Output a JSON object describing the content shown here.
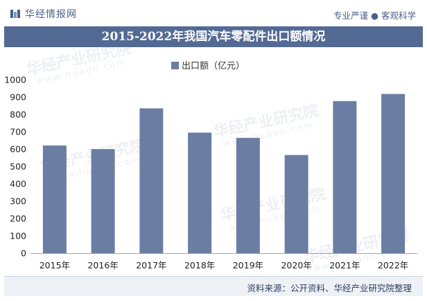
{
  "header": {
    "brand": "华经情报网",
    "tagline": "专业严谨 ● 客观科学"
  },
  "title": "2015-2022年我国汽车零配件出口额情况",
  "watermark": {
    "main": "华经产业研究院",
    "sub": "www.huaon.com"
  },
  "footer": {
    "source": "资料来源：公开资料、华经产业研究院整理"
  },
  "colors": {
    "bar": "#6b7da3",
    "title_bg": "#536a94",
    "brand": "#4b5f8a"
  },
  "chart_data": {
    "type": "bar",
    "categories": [
      "2015年",
      "2016年",
      "2017年",
      "2018年",
      "2019年",
      "2020年",
      "2021年",
      "2022年"
    ],
    "series": [
      {
        "name": "出口额（亿元）",
        "values": [
          621,
          600,
          835,
          695,
          665,
          566,
          877,
          918
        ]
      }
    ],
    "ylim": [
      0,
      1000
    ],
    "yticks": [
      0,
      100,
      200,
      300,
      400,
      500,
      600,
      700,
      800,
      900,
      1000
    ],
    "legend": "top-center",
    "grid": false
  }
}
